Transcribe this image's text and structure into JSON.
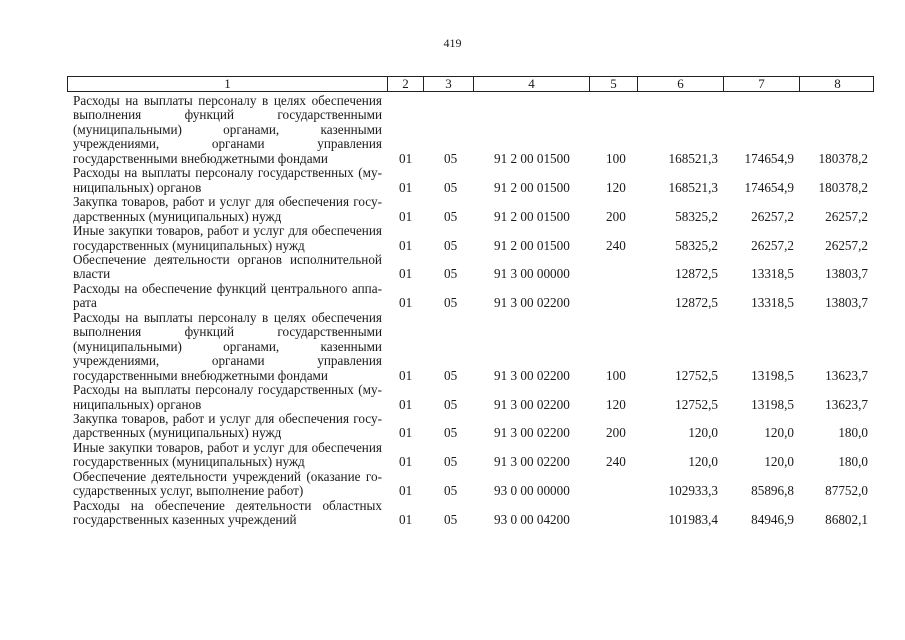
{
  "page_number": "419",
  "header": [
    "1",
    "2",
    "3",
    "4",
    "5",
    "6",
    "7",
    "8"
  ],
  "rows": [
    {
      "desc": "Расходы на выплаты персоналу в целях обеспечения выполнения функций государственными (муниципаль­ными) органами, казенными учреждениями, органами управления государственными внебюджетными фон­дами",
      "c2": "01",
      "c3": "05",
      "c4": "91 2 00 01500",
      "c5": "100",
      "c6": "168521,3",
      "c7": "174654,9",
      "c8": "180378,2"
    },
    {
      "desc": "Расходы на выплаты персоналу государственных (му­ниципальных) органов",
      "c2": "01",
      "c3": "05",
      "c4": "91 2 00 01500",
      "c5": "120",
      "c6": "168521,3",
      "c7": "174654,9",
      "c8": "180378,2"
    },
    {
      "desc": "Закупка товаров, работ и услуг для обеспечения госу­дарственных (муниципальных) нужд",
      "c2": "01",
      "c3": "05",
      "c4": "91 2 00 01500",
      "c5": "200",
      "c6": "58325,2",
      "c7": "26257,2",
      "c8": "26257,2"
    },
    {
      "desc": "Иные закупки товаров, работ и услуг для обеспечения государственных (муниципальных) нужд",
      "c2": "01",
      "c3": "05",
      "c4": "91 2 00 01500",
      "c5": "240",
      "c6": "58325,2",
      "c7": "26257,2",
      "c8": "26257,2"
    },
    {
      "desc": "Обеспечение деятельности органов исполнительной власти",
      "c2": "01",
      "c3": "05",
      "c4": "91 3 00 00000",
      "c5": "",
      "c6": "12872,5",
      "c7": "13318,5",
      "c8": "13803,7"
    },
    {
      "desc": "Расходы на обеспечение функций центрального аппа­рата",
      "c2": "01",
      "c3": "05",
      "c4": "91 3 00 02200",
      "c5": "",
      "c6": "12872,5",
      "c7": "13318,5",
      "c8": "13803,7"
    },
    {
      "desc": "Расходы на выплаты персоналу в целях обеспечения выполнения функций государственными (муниципаль­ными) органами, казенными учреждениями, органами управления государственными внебюджетными фон­дами",
      "c2": "01",
      "c3": "05",
      "c4": "91 3 00 02200",
      "c5": "100",
      "c6": "12752,5",
      "c7": "13198,5",
      "c8": "13623,7"
    },
    {
      "desc": "Расходы на выплаты персоналу государственных (му­ниципальных) органов",
      "c2": "01",
      "c3": "05",
      "c4": "91 3 00 02200",
      "c5": "120",
      "c6": "12752,5",
      "c7": "13198,5",
      "c8": "13623,7"
    },
    {
      "desc": "Закупка товаров, работ и услуг для обеспечения госу­дарственных (муниципальных) нужд",
      "c2": "01",
      "c3": "05",
      "c4": "91 3 00 02200",
      "c5": "200",
      "c6": "120,0",
      "c7": "120,0",
      "c8": "180,0"
    },
    {
      "desc": "Иные закупки товаров, работ и услуг для обеспечения государственных (муниципальных) нужд",
      "c2": "01",
      "c3": "05",
      "c4": "91 3 00 02200",
      "c5": "240",
      "c6": "120,0",
      "c7": "120,0",
      "c8": "180,0"
    },
    {
      "desc": "Обеспечение деятельности учреждений (оказание го­сударственных услуг, выполнение работ)",
      "c2": "01",
      "c3": "05",
      "c4": "93 0 00 00000",
      "c5": "",
      "c6": "102933,3",
      "c7": "85896,8",
      "c8": "87752,0"
    },
    {
      "desc": "Расходы на обеспечение деятельности областных госу­дарственных казенных учреждений",
      "c2": "01",
      "c3": "05",
      "c4": "93 0 00 04200",
      "c5": "",
      "c6": "101983,4",
      "c7": "84946,9",
      "c8": "86802,1"
    }
  ]
}
